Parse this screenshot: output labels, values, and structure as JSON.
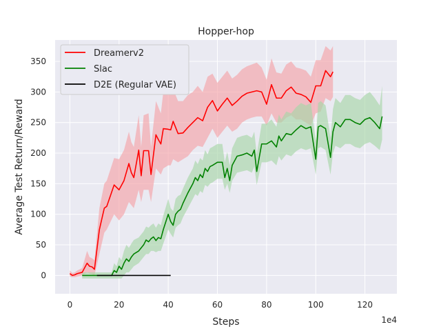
{
  "chart_data": {
    "type": "line",
    "title": "Hopper-hop",
    "xlabel": "Steps",
    "ylabel": "Average Test Return/Reward",
    "x_multiplier_label": "1e4",
    "xlim": [
      -6,
      133
    ],
    "ylim": [
      -30,
      385
    ],
    "xticks": [
      0,
      20,
      40,
      60,
      80,
      100,
      120
    ],
    "yticks": [
      0,
      50,
      100,
      150,
      200,
      250,
      300,
      350
    ],
    "grid": true,
    "legend_position": "upper-left",
    "series": [
      {
        "name": "Dreamerv2",
        "color": "#ff0000",
        "band_color": "#f4a3a8",
        "x": [
          0,
          1,
          2,
          3,
          5,
          7,
          8,
          9,
          10,
          12,
          14,
          15,
          18,
          20,
          22,
          24,
          25,
          26,
          28,
          29,
          30,
          32,
          33,
          35,
          36,
          37,
          38,
          40,
          41,
          42,
          44,
          46,
          48,
          50,
          52,
          54,
          56,
          58,
          60,
          62,
          64,
          66,
          68,
          70,
          72,
          74,
          76,
          78,
          80,
          82,
          84,
          86,
          88,
          90,
          92,
          94,
          96,
          98,
          100,
          102,
          104,
          106,
          107
        ],
        "y": [
          3,
          0,
          1,
          3,
          5,
          20,
          15,
          14,
          10,
          75,
          110,
          113,
          148,
          140,
          155,
          183,
          168,
          160,
          205,
          163,
          204,
          204,
          165,
          230,
          222,
          215,
          240,
          239,
          238,
          252,
          232,
          233,
          242,
          250,
          258,
          253,
          275,
          286,
          269,
          280,
          290,
          278,
          285,
          293,
          298,
          300,
          302,
          300,
          280,
          312,
          290,
          290,
          302,
          308,
          298,
          296,
          292,
          283,
          310,
          310,
          335,
          325,
          333
        ],
        "lower": [
          -2,
          -3,
          -3,
          -2,
          0,
          5,
          3,
          2,
          0,
          35,
          70,
          75,
          100,
          90,
          100,
          120,
          115,
          110,
          140,
          120,
          140,
          140,
          120,
          175,
          170,
          165,
          175,
          180,
          180,
          190,
          185,
          190,
          195,
          205,
          212,
          210,
          225,
          240,
          225,
          235,
          245,
          235,
          240,
          250,
          255,
          258,
          260,
          260,
          245,
          265,
          250,
          250,
          258,
          262,
          255,
          255,
          250,
          245,
          265,
          268,
          290,
          285,
          292
        ],
        "upper": [
          8,
          4,
          5,
          8,
          12,
          40,
          30,
          28,
          25,
          110,
          150,
          155,
          192,
          190,
          205,
          235,
          218,
          210,
          262,
          210,
          262,
          265,
          210,
          285,
          275,
          265,
          300,
          300,
          295,
          305,
          285,
          285,
          295,
          300,
          310,
          300,
          325,
          330,
          315,
          325,
          335,
          322,
          328,
          337,
          342,
          345,
          348,
          340,
          320,
          355,
          332,
          330,
          345,
          350,
          340,
          338,
          335,
          325,
          352,
          352,
          375,
          368,
          375
        ]
      },
      {
        "name": "Slac",
        "color": "#008000",
        "band_color": "#a8d5a8",
        "x": [
          5,
          7,
          9,
          11,
          13,
          15,
          17,
          18,
          19,
          20,
          21,
          22,
          23,
          24,
          25,
          26,
          28,
          30,
          31,
          32,
          33,
          34,
          35,
          36,
          37,
          38,
          40,
          41,
          42,
          43,
          44,
          45,
          46,
          48,
          50,
          51,
          52,
          53,
          54,
          55,
          56,
          57,
          58,
          60,
          62,
          63,
          64,
          65,
          66,
          68,
          70,
          72,
          74,
          75,
          76,
          78,
          80,
          82,
          84,
          85,
          86,
          88,
          90,
          92,
          94,
          96,
          98,
          100,
          101,
          102,
          104,
          106,
          107,
          108,
          110,
          112,
          114,
          116,
          118,
          120,
          122,
          124,
          126,
          127
        ],
        "y": [
          0,
          0,
          0,
          0,
          0,
          0,
          0,
          8,
          5,
          15,
          10,
          20,
          27,
          23,
          30,
          35,
          40,
          50,
          58,
          55,
          60,
          63,
          57,
          62,
          60,
          75,
          100,
          88,
          82,
          100,
          105,
          108,
          118,
          135,
          150,
          160,
          155,
          165,
          160,
          175,
          170,
          178,
          180,
          185,
          185,
          160,
          175,
          155,
          180,
          195,
          197,
          200,
          195,
          205,
          170,
          215,
          215,
          220,
          210,
          228,
          220,
          232,
          230,
          238,
          245,
          240,
          243,
          190,
          243,
          245,
          240,
          193,
          235,
          250,
          243,
          255,
          255,
          250,
          247,
          255,
          258,
          250,
          240,
          260
        ],
        "lower": [
          -5,
          -5,
          -5,
          -5,
          -5,
          -5,
          -5,
          -5,
          -5,
          -5,
          -5,
          0,
          5,
          5,
          10,
          15,
          20,
          30,
          35,
          35,
          40,
          40,
          38,
          40,
          40,
          52,
          75,
          68,
          62,
          78,
          82,
          85,
          95,
          110,
          125,
          133,
          130,
          138,
          135,
          148,
          145,
          150,
          152,
          158,
          158,
          140,
          150,
          135,
          155,
          168,
          170,
          172,
          168,
          178,
          148,
          185,
          185,
          188,
          180,
          195,
          188,
          198,
          195,
          203,
          208,
          205,
          208,
          165,
          208,
          210,
          205,
          165,
          200,
          212,
          208,
          215,
          215,
          210,
          208,
          215,
          218,
          212,
          205,
          222
        ],
        "upper": [
          5,
          5,
          5,
          5,
          5,
          5,
          5,
          20,
          15,
          30,
          25,
          40,
          50,
          45,
          52,
          58,
          62,
          72,
          80,
          78,
          82,
          85,
          78,
          85,
          82,
          98,
          125,
          110,
          105,
          125,
          130,
          132,
          142,
          160,
          175,
          188,
          182,
          192,
          188,
          205,
          198,
          208,
          210,
          215,
          215,
          185,
          202,
          180,
          208,
          225,
          228,
          230,
          225,
          235,
          198,
          248,
          248,
          255,
          243,
          263,
          255,
          268,
          265,
          275,
          282,
          278,
          282,
          220,
          282,
          285,
          278,
          225,
          272,
          290,
          282,
          295,
          295,
          290,
          287,
          295,
          300,
          290,
          278,
          310
        ]
      },
      {
        "name": "D2E (Regular VAE)",
        "color": "#000000",
        "x": [
          11,
          15,
          20,
          25,
          30,
          35,
          40,
          41
        ],
        "y": [
          0,
          0,
          0,
          0,
          0,
          0,
          0,
          0
        ]
      }
    ]
  }
}
